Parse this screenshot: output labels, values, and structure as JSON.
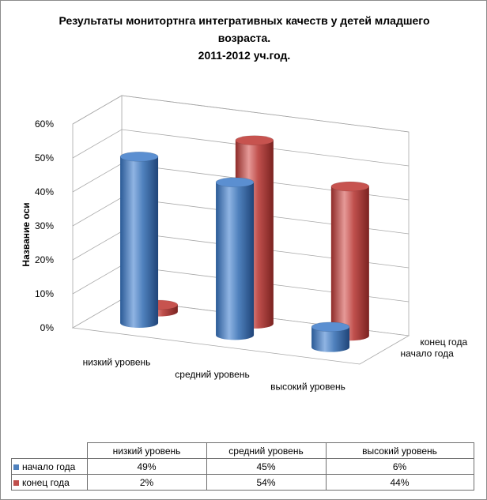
{
  "title_lines": [
    "Результаты монитортнга интегративных качеств у детей младшего",
    "возраста.",
    "2011-2012 уч.год."
  ],
  "chart_data": {
    "type": "bar",
    "subtype": "3d-column",
    "categories": [
      "низкий уровень",
      "средний уровень",
      "высокий уровень"
    ],
    "series": [
      {
        "name": "начало года",
        "values": [
          49,
          45,
          6
        ],
        "labels": [
          "49%",
          "45%",
          "6%"
        ],
        "color": "#4f81bd"
      },
      {
        "name": "конец года",
        "values": [
          2,
          54,
          44
        ],
        "labels": [
          "2%",
          "54%",
          "44%"
        ],
        "color": "#c0504d"
      }
    ],
    "ylabel": "Название оси",
    "yticks": [
      "0%",
      "10%",
      "20%",
      "30%",
      "40%",
      "50%",
      "60%"
    ],
    "ylim": [
      0,
      60
    ],
    "grid": true,
    "data_table": true
  }
}
